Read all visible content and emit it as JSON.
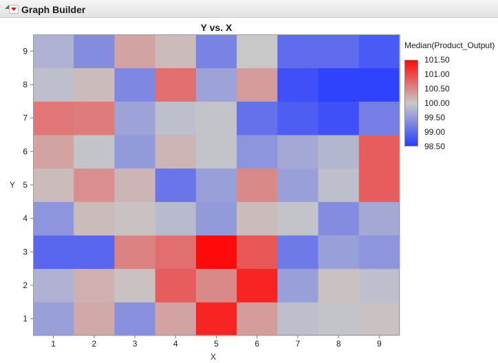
{
  "window": {
    "title": "Graph Builder"
  },
  "colors": {
    "low": "#2a3eff",
    "mid": "#c8c8c8",
    "high": "#ff0a0a",
    "background": "#ffffff"
  },
  "icons": {
    "disclosure": "disclosure-triangle-icon",
    "menu": "red-menu-triangle-icon"
  },
  "chart_data": {
    "type": "heatmap",
    "title": "Y vs. X",
    "xlabel": "X",
    "ylabel": "Y",
    "x_categories": [
      "1",
      "2",
      "3",
      "4",
      "5",
      "6",
      "7",
      "8",
      "9"
    ],
    "y_categories": [
      "1",
      "2",
      "3",
      "4",
      "5",
      "6",
      "7",
      "8",
      "9"
    ],
    "values": [
      [
        99.55,
        100.25,
        99.4,
        100.3,
        101.3,
        100.35,
        99.9,
        99.95,
        100.05
      ],
      [
        99.75,
        100.2,
        100.05,
        100.85,
        100.5,
        101.3,
        99.55,
        100.05,
        99.9
      ],
      [
        98.95,
        98.95,
        100.55,
        100.7,
        101.5,
        100.9,
        99.15,
        99.55,
        99.45
      ],
      [
        99.45,
        100.1,
        100.05,
        99.85,
        99.5,
        100.1,
        99.95,
        99.35,
        99.65
      ],
      [
        100.1,
        100.45,
        100.15,
        99.1,
        99.55,
        100.5,
        99.55,
        99.9,
        100.85
      ],
      [
        100.3,
        99.95,
        99.5,
        100.15,
        99.95,
        99.45,
        99.65,
        99.8,
        100.85
      ],
      [
        100.65,
        100.6,
        99.6,
        99.9,
        99.95,
        99.05,
        98.85,
        98.7,
        99.2
      ],
      [
        99.9,
        100.1,
        99.3,
        100.7,
        99.6,
        100.35,
        98.7,
        98.55,
        98.55
      ],
      [
        99.75,
        99.35,
        100.3,
        100.1,
        99.25,
        100.0,
        99.0,
        99.0,
        98.8
      ]
    ],
    "colorbar": {
      "title": "Median(Product_Output)",
      "min": 98.5,
      "max": 101.5,
      "ticks": [
        "101.50",
        "101.00",
        "100.50",
        "100.00",
        "99.50",
        "99.00",
        "98.50"
      ]
    },
    "grid": false,
    "legend_placement": "right"
  }
}
